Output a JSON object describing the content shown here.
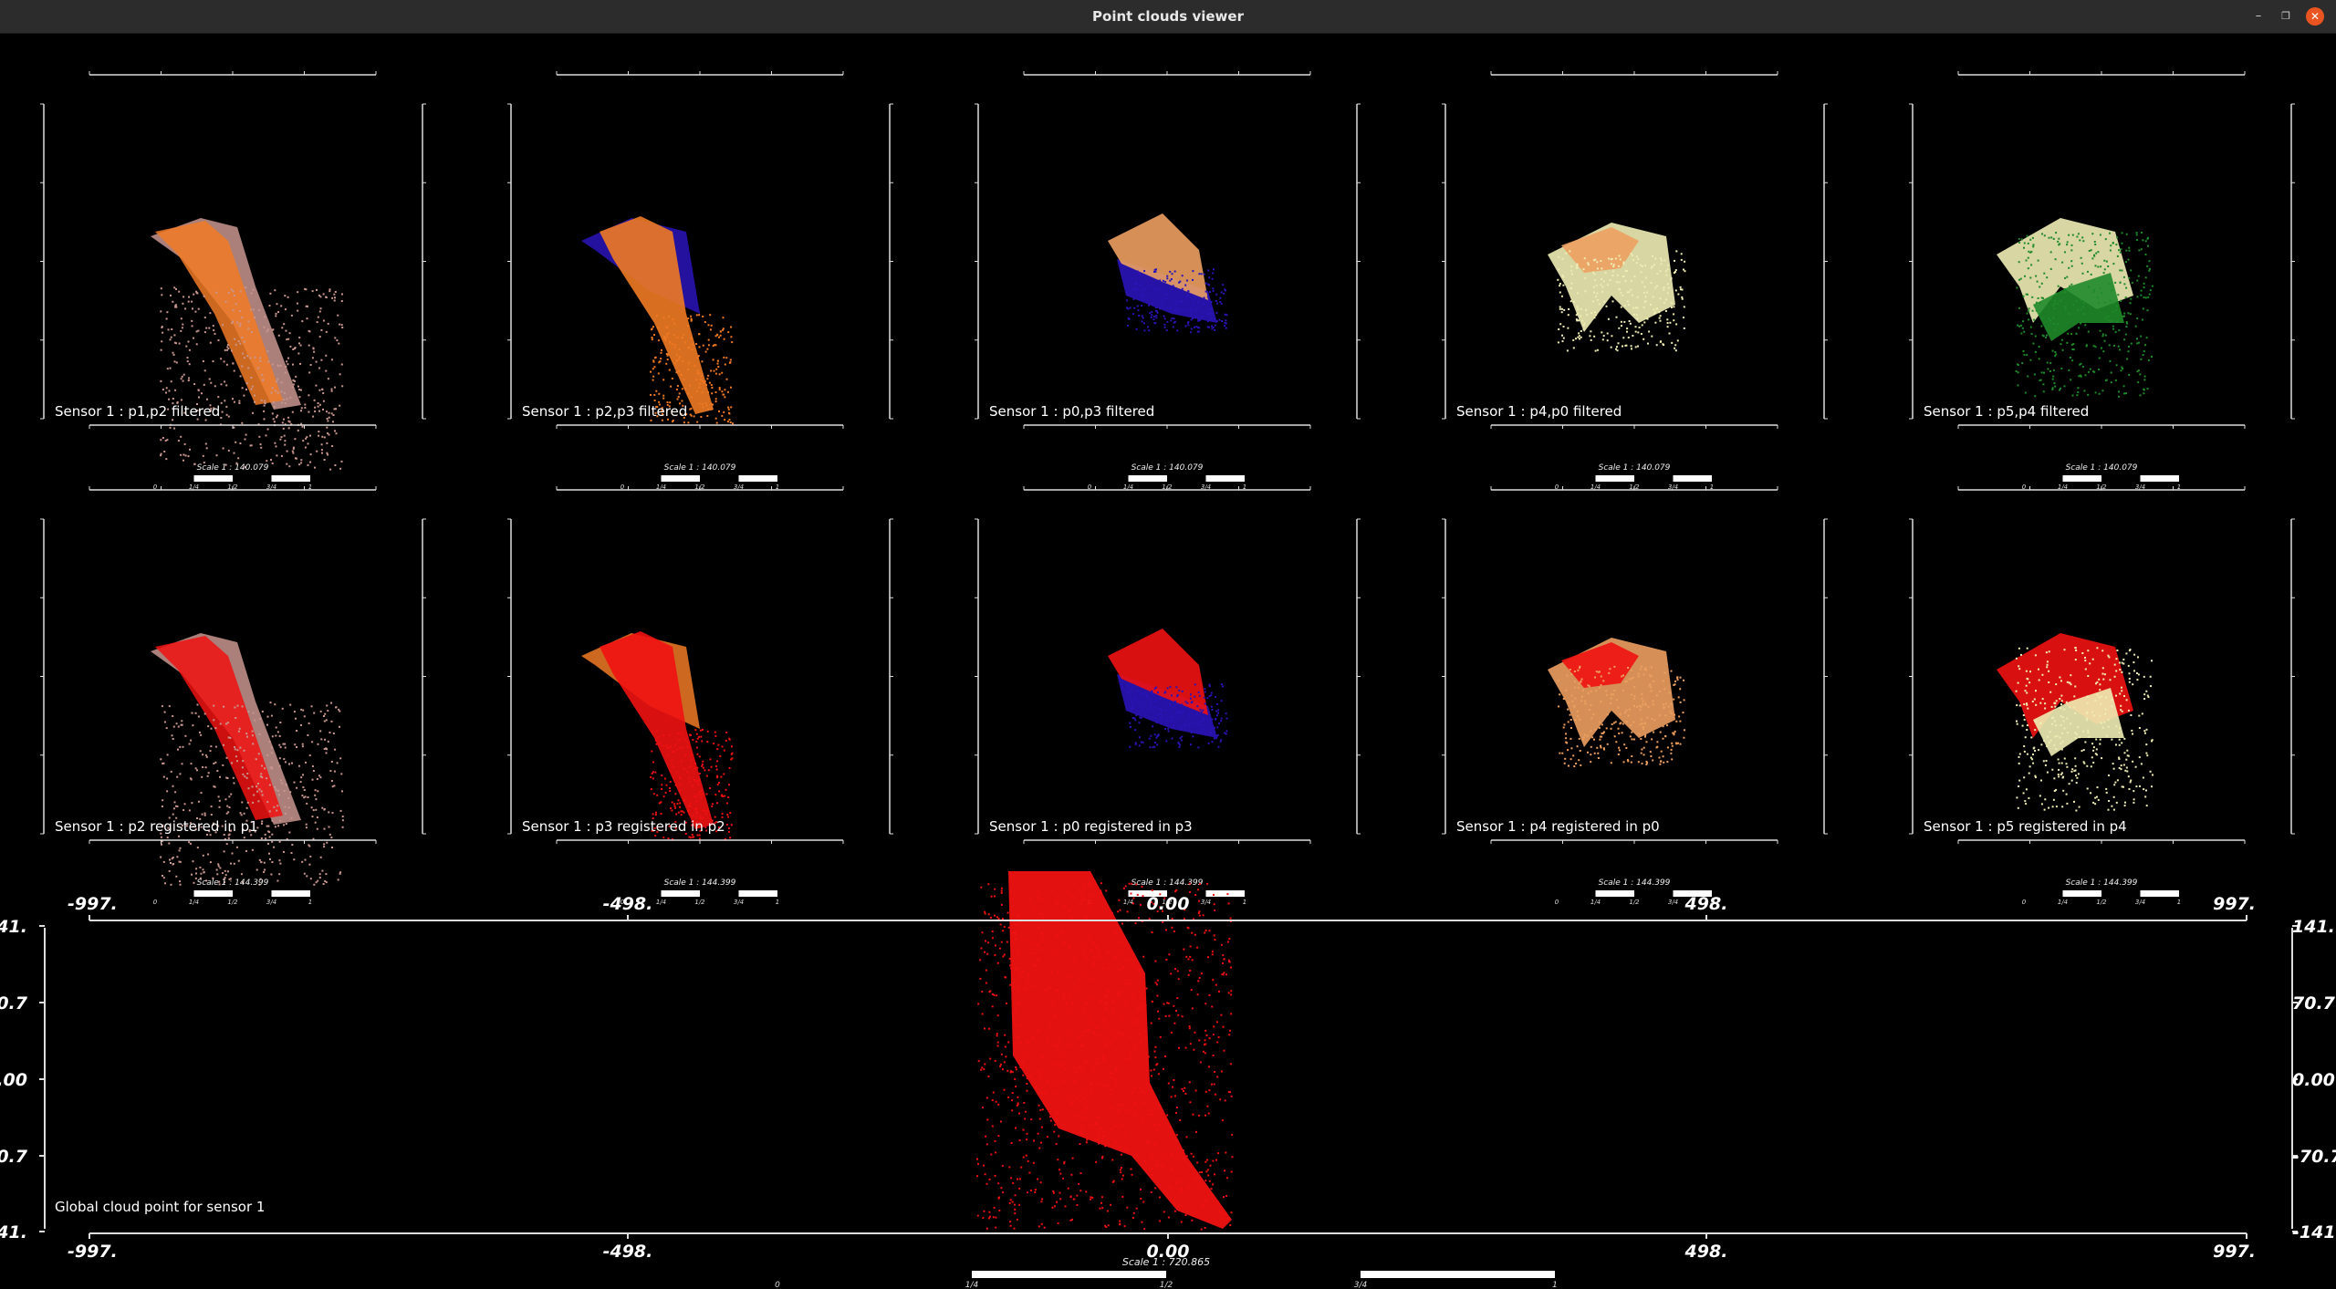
{
  "window": {
    "title": "Point clouds viewer"
  },
  "views": [
    {
      "label": "Sensor 1 : p1,p2 filtered",
      "clouds": [
        "salmon",
        "orange"
      ]
    },
    {
      "label": "Sensor 1 : p2,p3 filtered",
      "clouds": [
        "blue",
        "orange"
      ]
    },
    {
      "label": "Sensor 1 : p0,p3 filtered",
      "clouds": [
        "blue",
        "light-orange"
      ]
    },
    {
      "label": "Sensor 1 : p4,p0 filtered",
      "clouds": [
        "cream",
        "light-orange"
      ]
    },
    {
      "label": "Sensor 1 : p5,p4 filtered",
      "clouds": [
        "green",
        "cream"
      ]
    },
    {
      "label": "Sensor 1 : p2 registered in p1",
      "clouds": [
        "salmon",
        "red"
      ]
    },
    {
      "label": "Sensor 1 : p3 registered in p2",
      "clouds": [
        "orange",
        "red"
      ]
    },
    {
      "label": "Sensor 1 : p0 registered in p3",
      "clouds": [
        "blue",
        "red"
      ]
    },
    {
      "label": "Sensor 1 : p4 registered in p0",
      "clouds": [
        "light-orange",
        "red"
      ]
    },
    {
      "label": "Sensor 1 : p5 registered in p4",
      "clouds": [
        "cream",
        "red"
      ]
    }
  ],
  "scales": {
    "filtered": "Scale 1 : 140.079",
    "registered": "Scale 1 : 144.399",
    "global": "Scale 1 : 720.865"
  },
  "scalebar_ticks": [
    "0",
    "1/4",
    "1/2",
    "3/4",
    "1"
  ],
  "global_view": {
    "label": "Global cloud point for sensor 1",
    "x_ticks": [
      "-997.",
      "-498.",
      "0.00",
      "498.",
      "997."
    ],
    "y_ticks": [
      "141.",
      "70.7",
      "0.00",
      "-70.7",
      "-141."
    ]
  },
  "colors": {
    "salmon": "#c9968f",
    "orange": "#f07a24",
    "light-orange": "#eda060",
    "blue": "#2a14b8",
    "cream": "#efedb4",
    "green": "#1f8a2a",
    "red": "#f01212"
  }
}
